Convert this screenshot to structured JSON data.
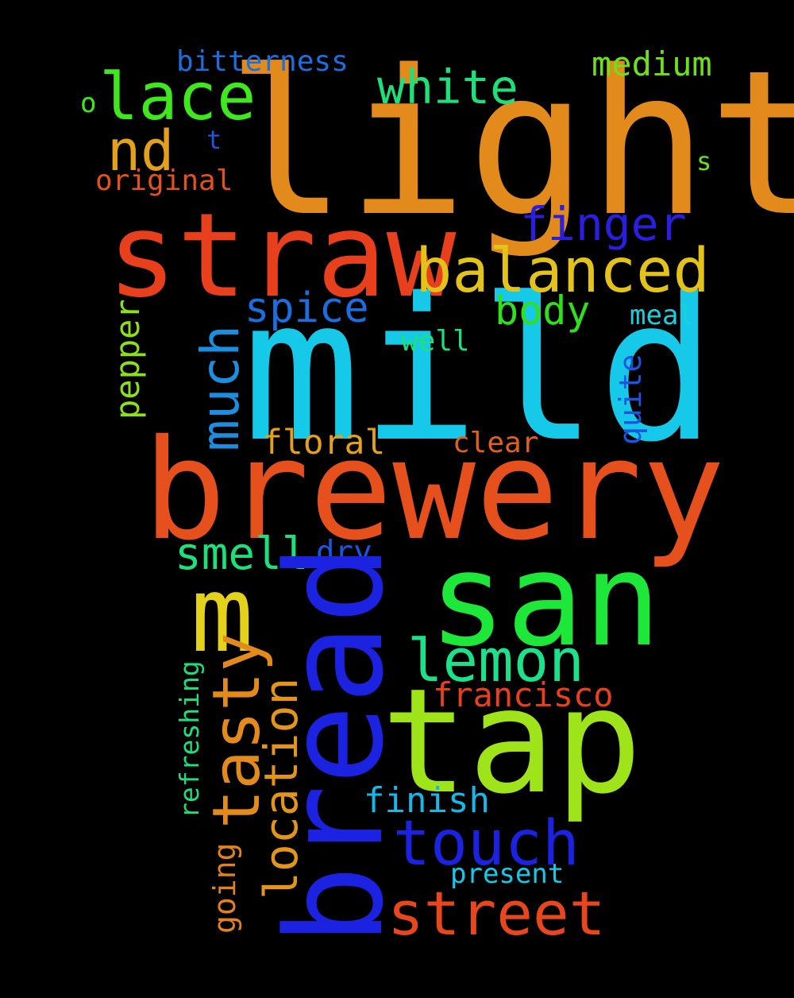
{
  "word_cloud": {
    "background_color": "#000000",
    "words": {
      "light": {
        "text": "light",
        "color": "#e28a1b"
      },
      "mild": {
        "text": "mild",
        "color": "#17c9e8"
      },
      "brewery": {
        "text": "brewery",
        "color": "#e5501d"
      },
      "straw": {
        "text": "straw",
        "color": "#e8401d"
      },
      "bread": {
        "text": "bread",
        "color": "#1b22e0"
      },
      "tap": {
        "text": "tap",
        "color": "#9fe31a"
      },
      "san": {
        "text": "san",
        "color": "#1de83a"
      },
      "m": {
        "text": "m",
        "color": "#e4d11a"
      },
      "balanced": {
        "text": "balanced",
        "color": "#e3c21a"
      },
      "touch": {
        "text": "touch",
        "color": "#1b22e0"
      },
      "street": {
        "text": "street",
        "color": "#e8461d"
      },
      "tasty": {
        "text": "tasty",
        "color": "#e28a1b"
      },
      "lace": {
        "text": "lace",
        "color": "#3ee81c"
      },
      "white": {
        "text": "white",
        "color": "#1de07a"
      },
      "lemon": {
        "text": "lemon",
        "color": "#1de08a"
      },
      "much": {
        "text": "much",
        "color": "#1b8ee0"
      },
      "finger": {
        "text": "finger",
        "color": "#2a1ee0"
      },
      "nd": {
        "text": "nd",
        "color": "#e3a01a"
      },
      "location": {
        "text": "location",
        "color": "#e3951a"
      },
      "smell": {
        "text": "smell",
        "color": "#1de07a"
      },
      "spice": {
        "text": "spice",
        "color": "#1b6ee0"
      },
      "body": {
        "text": "body",
        "color": "#30e01c"
      },
      "medium": {
        "text": "medium",
        "color": "#6de01c"
      },
      "francisco": {
        "text": "francisco",
        "color": "#e8401d"
      },
      "floral": {
        "text": "floral",
        "color": "#e3a01a"
      },
      "finish": {
        "text": "finish",
        "color": "#17b8e8"
      },
      "pepper": {
        "text": "pepper",
        "color": "#8ee01c"
      },
      "quite": {
        "text": "quite",
        "color": "#1b55e0"
      },
      "bitterness": {
        "text": "bitterness",
        "color": "#1b6ee0"
      },
      "original": {
        "text": "original",
        "color": "#e3521a"
      },
      "clear": {
        "text": "clear",
        "color": "#e3601a"
      },
      "dry": {
        "text": "dry",
        "color": "#1b55e0"
      },
      "well": {
        "text": "well",
        "color": "#1de07a"
      },
      "meal": {
        "text": "meal",
        "color": "#17d0e0"
      },
      "refreshing": {
        "text": "refreshing",
        "color": "#1de07a"
      },
      "present": {
        "text": "present",
        "color": "#17c9e8"
      },
      "going": {
        "text": "going",
        "color": "#e3821a"
      },
      "o": {
        "text": "o",
        "color": "#3ee81c"
      },
      "t": {
        "text": "t",
        "color": "#1b55e0"
      },
      "s": {
        "text": "s",
        "color": "#6de01c"
      }
    }
  }
}
